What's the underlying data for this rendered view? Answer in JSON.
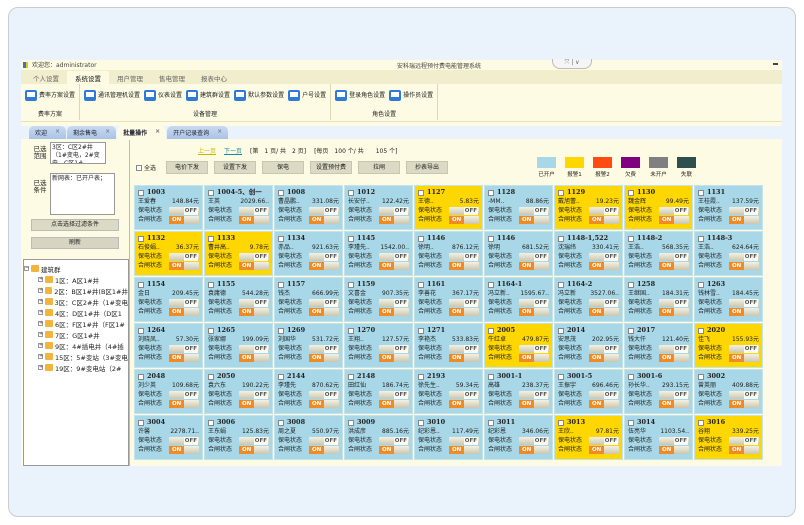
{
  "window": {
    "welcome": "欢迎您：administrator",
    "title": "安科瑞远程预付费电能管理系统",
    "window_controls": "⤧ | ∨"
  },
  "menu": [
    "个人设置",
    "系统设置",
    "用户管理",
    "售电管理",
    "报表中心"
  ],
  "menu_active": 1,
  "ribbon": [
    {
      "label": "费率方案",
      "buttons": [
        "费率方案设置"
      ]
    },
    {
      "label": "设备管理",
      "buttons": [
        "通讯管理机设置",
        "仪表设置",
        "建筑群设置",
        "默认参数设置",
        "户号设置"
      ]
    },
    {
      "label": "角色设置",
      "buttons": [
        "登录角色设置",
        "操作员设置"
      ]
    }
  ],
  "doc_tabs": [
    "欢迎",
    "剩余售电",
    "批量操作",
    "开户记录查询"
  ],
  "doc_tab_active": 2,
  "left": {
    "range_label": "已选范围",
    "range_value": "3区：C区2#井（1#变电，2#变电，C区1#...",
    "cond_label": "已选条件",
    "cond_value": "新网表：已开户表；",
    "filter_button": "点击选择过滤条件",
    "refresh_button": "刷新",
    "tree_root": "建筑群",
    "tree": [
      "1区：A区1#井",
      "2区：B区1#井(B区1#井",
      "3区：C区2#井（1#变电",
      "4区：D区1#井（D区1",
      "6区：F区1#井（F区1#",
      "7区：G区1#井",
      "9区：4#插电井（4#插",
      "15区：5#变站（3#变电",
      "19区：9#变电站（2#"
    ]
  },
  "pager": {
    "prev": "上一页",
    "next": "下一页",
    "page_info": "[第　1 页/ 共　2 页]",
    "size_info": "[每页　100 个/ 共　　105 个]"
  },
  "actions": {
    "select_all": "全选",
    "buttons": [
      "电价下发",
      "设置下发",
      "保电",
      "设置预付费",
      "拉闸",
      "抄表导出"
    ]
  },
  "legend": [
    {
      "label": "已开户",
      "color": "#a8d8e8"
    },
    {
      "label": "报警1",
      "color": "#ffd700"
    },
    {
      "label": "报警2",
      "color": "#ff4a12"
    },
    {
      "label": "欠费",
      "color": "#800080"
    },
    {
      "label": "未开户",
      "color": "#808080"
    },
    {
      "label": "失联",
      "color": "#2f4f4f"
    }
  ],
  "card_labels": {
    "power_keep": "保电状态",
    "switch": "合闸状态",
    "off": "OFF",
    "on": "ON"
  },
  "cards": [
    {
      "id": "1003",
      "name": "王爱春",
      "amount": "148.84元",
      "status": "已开户"
    },
    {
      "id": "1004-5、创一",
      "name": "王英",
      "amount": "2029.66..",
      "status": "已开户"
    },
    {
      "id": "1008",
      "name": "曹晶鹏..",
      "amount": "331.08元",
      "status": "已开户"
    },
    {
      "id": "1012",
      "name": "长安仔..",
      "amount": "122.42元",
      "status": "已开户"
    },
    {
      "id": "1127",
      "name": "王德..",
      "amount": "5.83元",
      "status": "报警1"
    },
    {
      "id": "1128",
      "name": "-MM..",
      "amount": "88.86元",
      "status": "已开户"
    },
    {
      "id": "1129",
      "name": "戴旭蕾..",
      "amount": "19.23元",
      "status": "报警1"
    },
    {
      "id": "1130",
      "name": "魏金辉",
      "amount": "99.49元",
      "status": "报警1"
    },
    {
      "id": "1131",
      "name": "王桂霞..",
      "amount": "137.59元",
      "status": "已开户"
    },
    {
      "id": "1132",
      "name": "石俊娟..",
      "amount": "36.37元",
      "status": "报警1"
    },
    {
      "id": "1133",
      "name": "曹井高..",
      "amount": "9.78元",
      "status": "报警1"
    },
    {
      "id": "1134",
      "name": "赤品..",
      "amount": "921.63元",
      "status": "已开户"
    },
    {
      "id": "1145",
      "name": "李瑾先..",
      "amount": "1542.00..",
      "status": "已开户"
    },
    {
      "id": "1146",
      "name": "徐明..",
      "amount": "876.12元",
      "status": "已开户"
    },
    {
      "id": "1146",
      "name": "徐明",
      "amount": "681.52元",
      "status": "已开户"
    },
    {
      "id": "1148-1,522",
      "name": "沈瑞纬",
      "amount": "330.41元",
      "status": "已开户"
    },
    {
      "id": "1148-2",
      "name": "王浩..",
      "amount": "568.35元",
      "status": "已开户"
    },
    {
      "id": "1148-3",
      "name": "王浩..",
      "amount": "624.64元",
      "status": "已开户"
    },
    {
      "id": "1154",
      "name": "金日",
      "amount": "209.45元",
      "status": "已开户"
    },
    {
      "id": "1155",
      "name": "袁庸德",
      "amount": "544.28元",
      "status": "已开户"
    },
    {
      "id": "1157",
      "name": "钱杰",
      "amount": "666.99元",
      "status": "已开户"
    },
    {
      "id": "1159",
      "name": "文喜金",
      "amount": "907.35元",
      "status": "已开户"
    },
    {
      "id": "1161",
      "name": "李善花",
      "amount": "367.17元",
      "status": "已开户"
    },
    {
      "id": "1164-1",
      "name": "冯立新..",
      "amount": "1595.67..",
      "status": "已开户"
    },
    {
      "id": "1164-2",
      "name": "冯立新",
      "amount": "3527.06..",
      "status": "已开户"
    },
    {
      "id": "1258",
      "name": "王继国..",
      "amount": "184.31元",
      "status": "已开户"
    },
    {
      "id": "1263",
      "name": "钱林雪..",
      "amount": "184.45元",
      "status": "已开户"
    },
    {
      "id": "1264",
      "name": "刘晓凤..",
      "amount": "57.30元",
      "status": "已开户"
    },
    {
      "id": "1265",
      "name": "张家娜",
      "amount": "199.09元",
      "status": "已开户"
    },
    {
      "id": "1269",
      "name": "刘国华",
      "amount": "531.72元",
      "status": "已开户"
    },
    {
      "id": "1270",
      "name": "王翔..",
      "amount": "127.57元",
      "status": "已开户"
    },
    {
      "id": "1271",
      "name": "李艳杰",
      "amount": "533.83元",
      "status": "已开户"
    },
    {
      "id": "2005",
      "name": "牛红卓",
      "amount": "479.87元",
      "status": "报警1"
    },
    {
      "id": "2014",
      "name": "安思茂",
      "amount": "202.95元",
      "status": "已开户"
    },
    {
      "id": "2017",
      "name": "钱大仟",
      "amount": "121.40元",
      "status": "已开户"
    },
    {
      "id": "2020",
      "name": "佳飞",
      "amount": "155.93元",
      "status": "报警1"
    },
    {
      "id": "2048",
      "name": "刘少英",
      "amount": "109.68元",
      "status": "已开户"
    },
    {
      "id": "2050",
      "name": "袁六东",
      "amount": "190.22元",
      "status": "已开户"
    },
    {
      "id": "2144",
      "name": "李瑾先",
      "amount": "870.62元",
      "status": "已开户"
    },
    {
      "id": "2148",
      "name": "田红仙",
      "amount": "186.74元",
      "status": "已开户"
    },
    {
      "id": "2193",
      "name": "徐先生..",
      "amount": "59.34元",
      "status": "已开户"
    },
    {
      "id": "3001-1",
      "name": "高雄",
      "amount": "238.37元",
      "status": "已开户"
    },
    {
      "id": "3001-5",
      "name": "王振宇",
      "amount": "696.46元",
      "status": "已开户"
    },
    {
      "id": "3001-6",
      "name": "孙长华..",
      "amount": "293.15元",
      "status": "已开户"
    },
    {
      "id": "3002",
      "name": "曾英丽",
      "amount": "409.88元",
      "status": "已开户"
    },
    {
      "id": "3004",
      "name": "许馨",
      "amount": "2278.71..",
      "status": "已开户"
    },
    {
      "id": "3006",
      "name": "王东娟",
      "amount": "125.83元",
      "status": "已开户"
    },
    {
      "id": "3008",
      "name": "周之夏",
      "amount": "550.97元",
      "status": "已开户"
    },
    {
      "id": "3009",
      "name": "洪成彦",
      "amount": "885.16元",
      "status": "已开户"
    },
    {
      "id": "3010",
      "name": "纪彩恩..",
      "amount": "117.49元",
      "status": "已开户"
    },
    {
      "id": "3011",
      "name": "纪彩恩",
      "amount": "346.06元",
      "status": "已开户"
    },
    {
      "id": "3013",
      "name": "王欣..",
      "amount": "97.81元",
      "status": "报警1"
    },
    {
      "id": "3014",
      "name": "伍亮华",
      "amount": "1103.54..",
      "status": "已开户"
    },
    {
      "id": "3016",
      "name": "谷翔",
      "amount": "339.25元",
      "status": "报警1"
    }
  ]
}
